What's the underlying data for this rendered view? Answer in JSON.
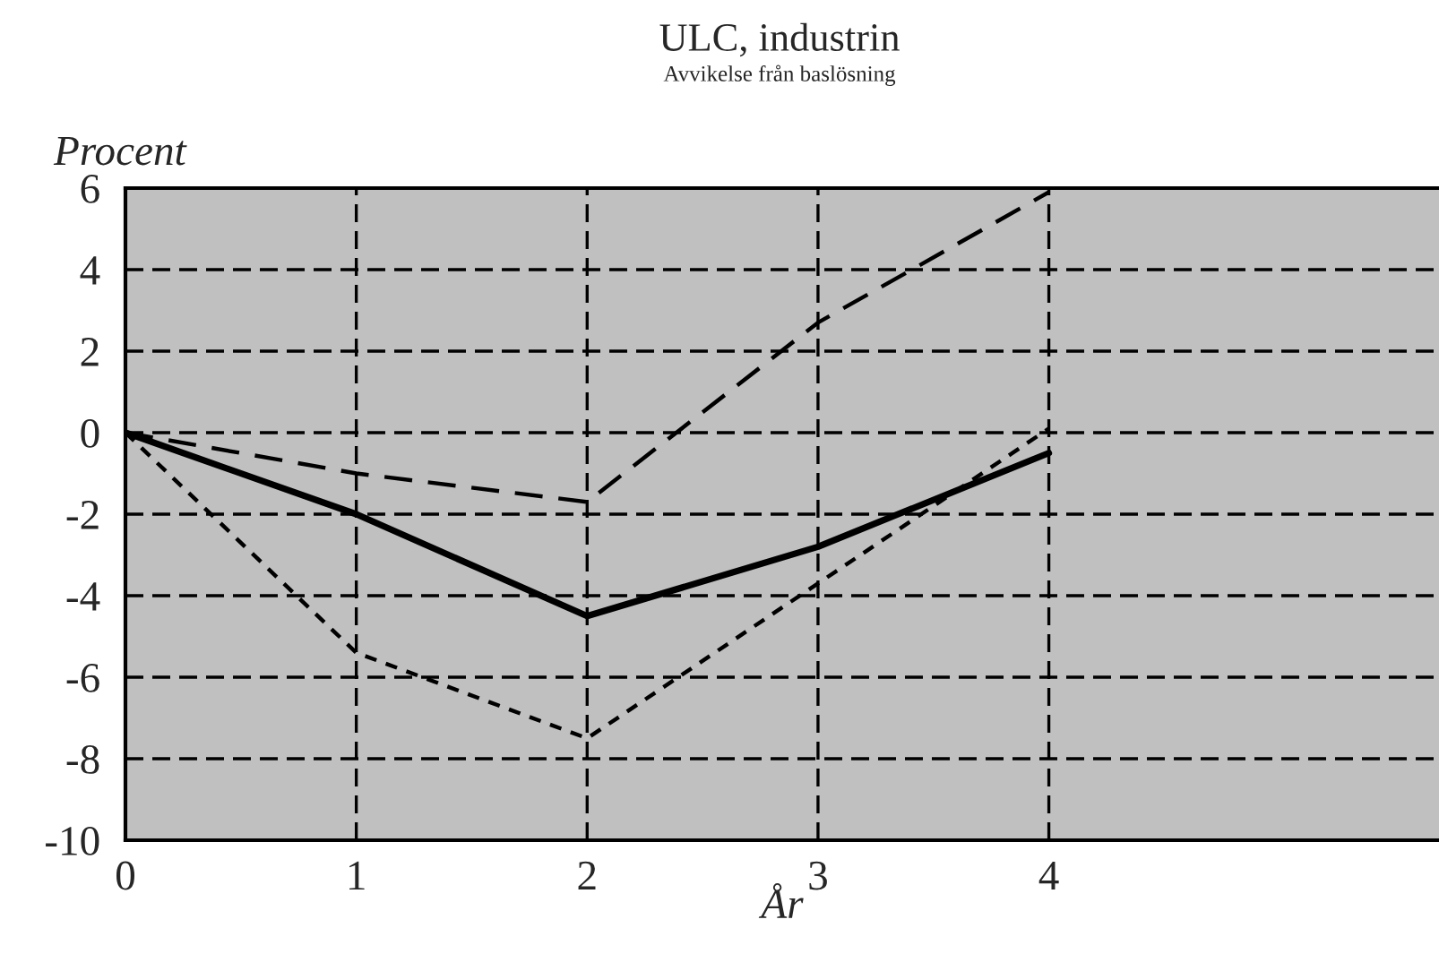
{
  "chart_data": {
    "type": "line",
    "title": "ULC, industrin",
    "subtitle": "Avvikelse från baslösning",
    "xlabel": "År",
    "ylabel": "Procent",
    "x": [
      0,
      1,
      2,
      3,
      4
    ],
    "series": [
      {
        "color": "#000000",
        "line_style": "solid",
        "values": [
          0,
          -2.0,
          -4.5,
          -2.8,
          -0.5
        ]
      },
      {
        "color": "#000000",
        "line_style": "dashed",
        "values": [
          0,
          -1.0,
          -1.7,
          2.7,
          5.9
        ]
      },
      {
        "color": "#000000",
        "line_style": "dotted",
        "values": [
          0,
          -5.4,
          -7.5,
          -3.7,
          0.1
        ]
      }
    ],
    "xlim": [
      0,
      5.69
    ],
    "xticks": [
      0,
      1,
      2,
      3,
      4
    ],
    "ylim": [
      -10,
      6
    ],
    "yticks": [
      -10,
      -8,
      -6,
      -4,
      -2,
      0,
      2,
      4,
      6
    ],
    "grid": true,
    "legend": false
  }
}
